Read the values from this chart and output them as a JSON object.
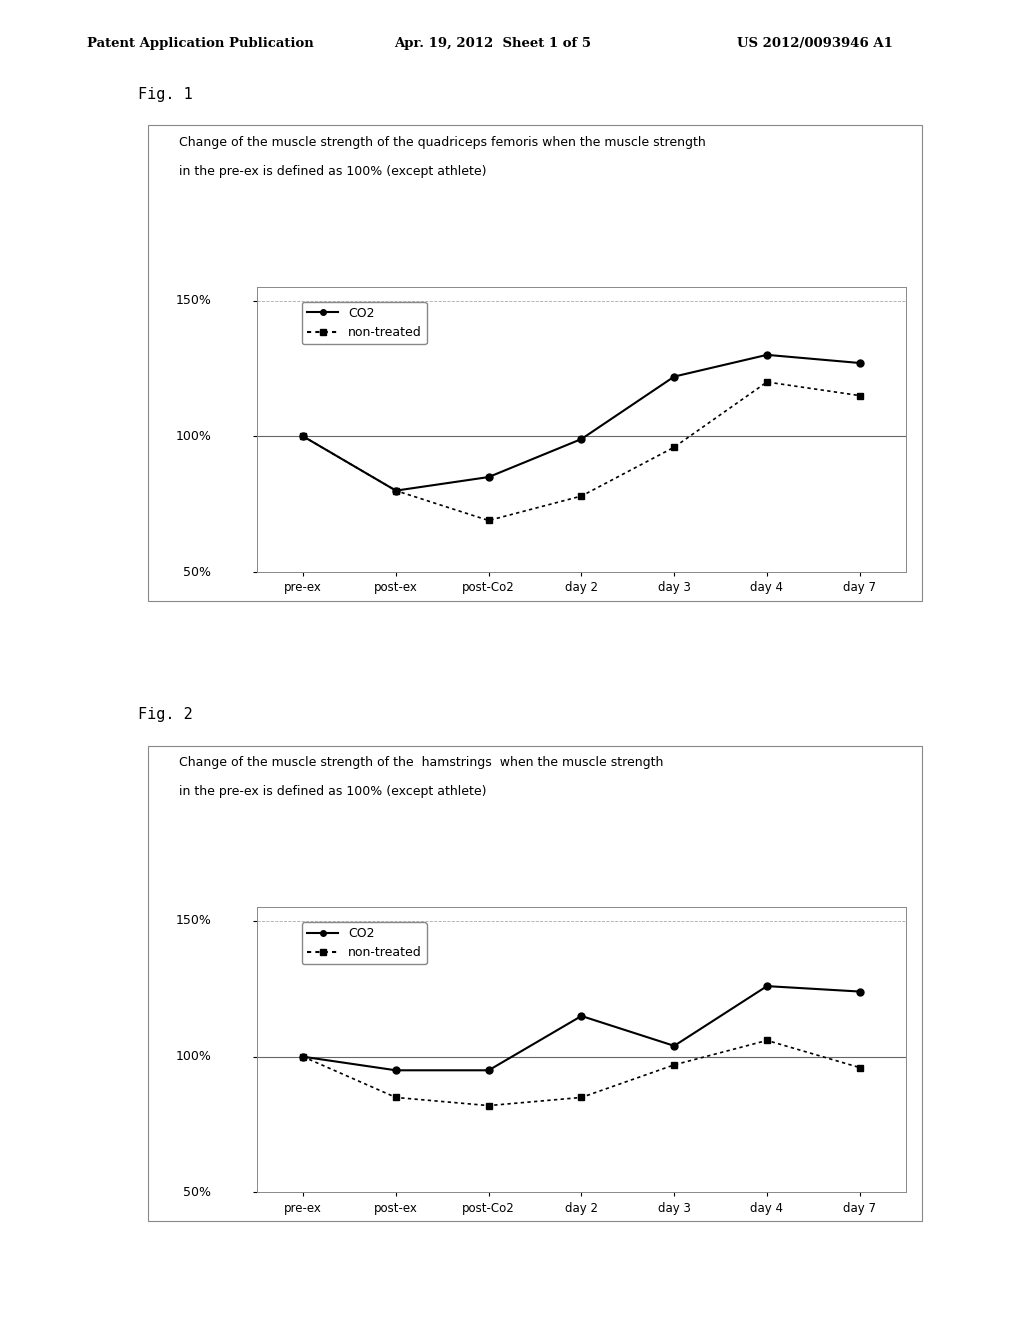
{
  "fig1": {
    "title_line1": "Change of the muscle strength of the quadriceps femoris when the muscle strength",
    "title_line2": "in the pre-ex is defined as 100% (except athlete)",
    "x_labels": [
      "pre-ex",
      "post-ex",
      "post-Co2",
      "day 2",
      "day 3",
      "day 4",
      "day 7"
    ],
    "co2": [
      100,
      80,
      85,
      99,
      122,
      130,
      127
    ],
    "non_treated": [
      100,
      80,
      69,
      78,
      96,
      120,
      115
    ],
    "ylim": [
      50,
      155
    ],
    "yticks": [
      50,
      100,
      150
    ],
    "ytick_labels": [
      "50%",
      "100%",
      "150%"
    ]
  },
  "fig2": {
    "title_line1": "Change of the muscle strength of the  hamstrings  when the muscle strength",
    "title_line2": "in the pre-ex is defined as 100% (except athlete)",
    "x_labels": [
      "pre-ex",
      "post-ex",
      "post-Co2",
      "day 2",
      "day 3",
      "day 4",
      "day 7"
    ],
    "co2": [
      100,
      95,
      95,
      115,
      104,
      126,
      124
    ],
    "non_treated": [
      100,
      85,
      82,
      85,
      97,
      106,
      96
    ],
    "ylim": [
      50,
      155
    ],
    "yticks": [
      50,
      100,
      150
    ],
    "ytick_labels": [
      "50%",
      "100%",
      "150%"
    ]
  },
  "header_left": "Patent Application Publication",
  "header_mid": "Apr. 19, 2012  Sheet 1 of 5",
  "header_right": "US 2012/0093946 A1",
  "fig_label1": "Fig. 1",
  "fig_label2": "Fig. 2",
  "legend_co2": "CO2",
  "legend_non_treated": "non-treated",
  "bg_color": "#ffffff"
}
